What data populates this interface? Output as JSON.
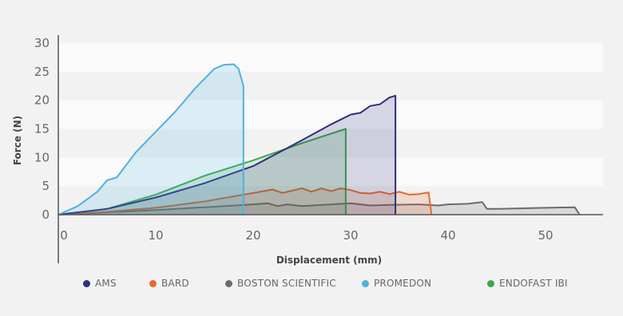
{
  "chart_data": {
    "type": "area",
    "xlabel": "Displacement (mm)",
    "ylabel": "Force (N)",
    "xlim": [
      0,
      55
    ],
    "ylim": [
      0,
      30
    ],
    "xticks": [
      0,
      10,
      20,
      30,
      40,
      50
    ],
    "yticks": [
      0,
      5,
      10,
      15,
      20,
      25,
      30
    ],
    "grid": "horizontal bands",
    "legend_position": "bottom",
    "series": [
      {
        "name": "BOSTON SCIENTIFIC",
        "color": "#6b6b6b",
        "x": [
          0,
          5,
          10,
          15,
          20,
          21.5,
          22.5,
          23.5,
          25,
          28,
          30,
          31,
          32,
          34,
          37,
          39,
          40,
          42,
          43.5,
          44,
          45,
          50,
          53,
          53.5
        ],
        "y": [
          0,
          0.4,
          0.8,
          1.3,
          1.8,
          2.0,
          1.5,
          1.8,
          1.5,
          1.8,
          2.0,
          1.8,
          1.6,
          1.7,
          1.8,
          1.6,
          1.8,
          1.9,
          2.2,
          1.0,
          1.0,
          1.2,
          1.3,
          0
        ]
      },
      {
        "name": "BARD",
        "color": "#e8692a",
        "x": [
          0,
          5,
          10,
          15,
          20,
          22,
          23,
          25,
          26,
          27,
          28,
          29,
          30,
          31,
          32,
          33,
          34,
          35,
          36,
          37,
          38,
          38.3
        ],
        "y": [
          0,
          0.5,
          1.2,
          2.3,
          3.8,
          4.4,
          3.8,
          4.6,
          4.0,
          4.6,
          4.1,
          4.6,
          4.3,
          3.8,
          3.7,
          4.0,
          3.6,
          4.0,
          3.5,
          3.6,
          3.9,
          0
        ]
      },
      {
        "name": "ENDOFAST IBI",
        "color": "#3aa84a",
        "x": [
          0,
          5,
          10,
          15,
          20,
          25,
          29.5,
          29.5
        ],
        "y": [
          0,
          1.0,
          3.5,
          6.8,
          9.5,
          12.5,
          15.0,
          0
        ]
      },
      {
        "name": "AMS",
        "color": "#2b2f7f",
        "x": [
          0,
          5,
          10,
          15,
          20,
          25,
          28,
          30,
          31,
          32,
          33,
          34,
          34.6,
          34.6
        ],
        "y": [
          0,
          1.0,
          3.0,
          5.5,
          8.5,
          13.0,
          15.8,
          17.5,
          17.8,
          19.0,
          19.3,
          20.5,
          20.8,
          0
        ]
      },
      {
        "name": "PROMEDON",
        "color": "#4fb2dd",
        "x": [
          0,
          2,
          4,
          5,
          6,
          8,
          10,
          12,
          14,
          16,
          17,
          18,
          18.5,
          19,
          19,
          19
        ],
        "y": [
          0,
          1.5,
          4.0,
          6.0,
          6.5,
          11.0,
          14.5,
          18.0,
          22.0,
          25.5,
          26.2,
          26.3,
          25.5,
          22.5,
          21.5,
          0
        ]
      }
    ]
  },
  "legend": [
    {
      "label": "AMS",
      "color": "#2b2f7f"
    },
    {
      "label": "BARD",
      "color": "#e8692a"
    },
    {
      "label": "BOSTON SCIENTIFIC",
      "color": "#6b6b6b"
    },
    {
      "label": "PROMEDON",
      "color": "#4fb2dd"
    },
    {
      "label": "ENDOFAST IBI",
      "color": "#3aa84a"
    }
  ]
}
